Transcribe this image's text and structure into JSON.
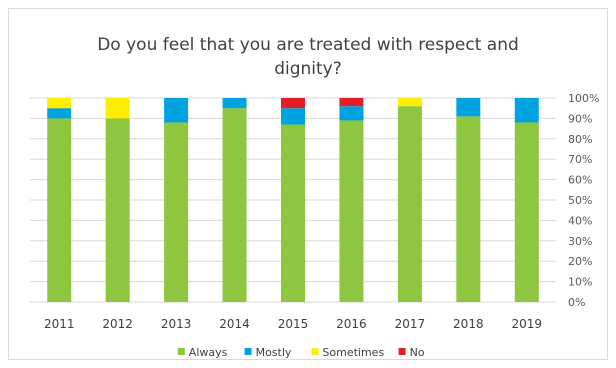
{
  "chart_data": {
    "type": "bar",
    "stacked": true,
    "title": "Do you feel that you are treated with respect and dignity?",
    "categories": [
      "2011",
      "2012",
      "2013",
      "2014",
      "2015",
      "2016",
      "2017",
      "2018",
      "2019"
    ],
    "series": [
      {
        "name": "Always",
        "color": "#8dc63f",
        "values": [
          90,
          90,
          88,
          95,
          87,
          89,
          96,
          91,
          88
        ]
      },
      {
        "name": "Mostly",
        "color": "#00a3e0",
        "values": [
          5,
          0,
          12,
          5,
          8,
          7,
          0,
          9,
          12
        ]
      },
      {
        "name": "Sometimes",
        "color": "#ffee00",
        "values": [
          5,
          10,
          0,
          0,
          0,
          0,
          4,
          0,
          0
        ]
      },
      {
        "name": "No",
        "color": "#e31e24",
        "values": [
          0,
          0,
          0,
          0,
          5,
          4,
          0,
          0,
          0
        ]
      }
    ],
    "ylim": [
      0,
      100
    ],
    "yticks": [
      "0%",
      "10%",
      "20%",
      "30%",
      "40%",
      "50%",
      "60%",
      "70%",
      "80%",
      "90%",
      "100%"
    ],
    "ytick_values": [
      0,
      10,
      20,
      30,
      40,
      50,
      60,
      70,
      80,
      90,
      100
    ],
    "y_axis_side": "right",
    "grid": true,
    "legend_position": "bottom"
  }
}
